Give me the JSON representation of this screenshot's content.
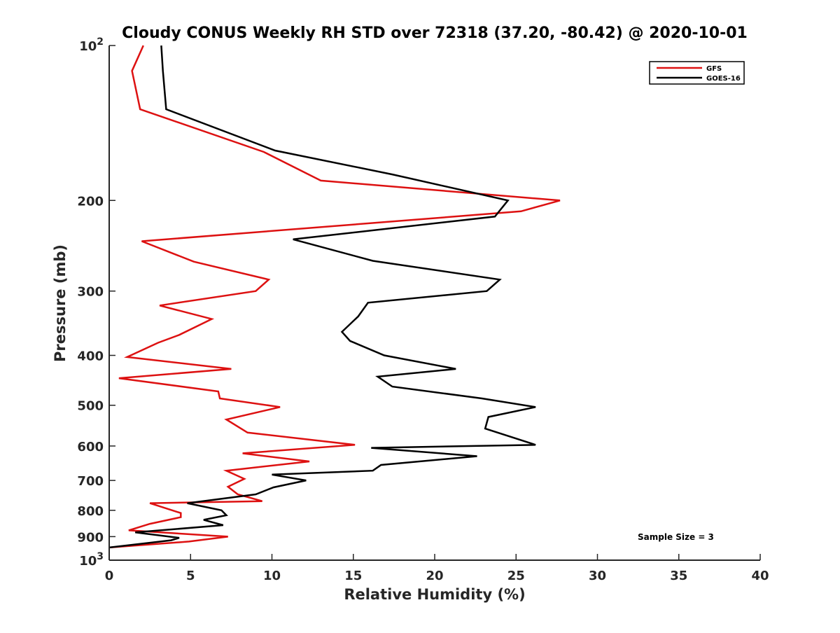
{
  "chart_data": {
    "type": "line",
    "title": "Cloudy CONUS Weekly RH STD over 72318 (37.20, -80.42) @ 2020-10-01",
    "xlabel": "Relative Humidity (%)",
    "ylabel": "Pressure (mb)",
    "xlim": [
      0,
      40
    ],
    "ylim": [
      100,
      1000
    ],
    "yscale": "log",
    "y_reversed": true,
    "x_ticks": [
      0,
      5,
      10,
      15,
      20,
      25,
      30,
      35,
      40
    ],
    "y_ticks": [
      {
        "value": 100,
        "base": "10",
        "exp": "2"
      },
      {
        "value": 200,
        "label": "200"
      },
      {
        "value": 300,
        "label": "300"
      },
      {
        "value": 400,
        "label": "400"
      },
      {
        "value": 500,
        "label": "500"
      },
      {
        "value": 600,
        "label": "600"
      },
      {
        "value": 700,
        "label": "700"
      },
      {
        "value": 800,
        "label": "800"
      },
      {
        "value": 900,
        "label": "900"
      },
      {
        "value": 1000,
        "base": "10",
        "exp": "3"
      }
    ],
    "legend_position": "top-right",
    "annotation": "Sample Size = 3",
    "series": [
      {
        "name": "GFS",
        "color": "#dd1111",
        "x": [
          2.1,
          1.4,
          1.9,
          9.5,
          13.0,
          27.7,
          25.3,
          2.0,
          5.2,
          9.8,
          9.0,
          3.1,
          6.3,
          4.3,
          3.0,
          1.1,
          7.5,
          0.6,
          6.7,
          6.8,
          10.5,
          7.2,
          8.5,
          15.1,
          8.2,
          12.3,
          7.2,
          8.3,
          7.3,
          7.9,
          9.4,
          2.5,
          4.4,
          4.4,
          2.5,
          1.2,
          7.3,
          4.9,
          0.0
        ],
        "y": [
          100,
          112,
          133,
          161,
          183,
          200,
          210,
          240,
          263,
          285,
          300,
          320,
          340,
          365,
          378,
          403,
          425,
          443,
          470,
          485,
          504,
          533,
          565,
          597,
          620,
          643,
          670,
          695,
          720,
          745,
          768,
          775,
          810,
          825,
          850,
          875,
          900,
          920,
          945
        ]
      },
      {
        "name": "GOES-16",
        "color": "#000000",
        "x": [
          3.2,
          3.3,
          3.5,
          10.2,
          17.4,
          24.5,
          23.7,
          11.3,
          16.2,
          24.0,
          23.2,
          15.9,
          15.3,
          14.3,
          14.8,
          16.9,
          21.3,
          16.5,
          17.4,
          22.9,
          26.2,
          23.3,
          23.1,
          26.2,
          16.1,
          22.6,
          16.7,
          16.2,
          10.0,
          12.1,
          10.1,
          9.0,
          4.8,
          6.9,
          7.2,
          5.8,
          7.0,
          1.6,
          4.3,
          3.8,
          0.0
        ],
        "y": [
          100,
          112,
          133,
          160,
          178,
          200,
          215,
          238,
          262,
          285,
          300,
          316,
          336,
          360,
          375,
          400,
          425,
          440,
          460,
          485,
          504,
          527,
          555,
          597,
          605,
          628,
          653,
          670,
          682,
          700,
          722,
          745,
          775,
          800,
          818,
          835,
          855,
          883,
          905,
          915,
          945
        ]
      }
    ]
  }
}
